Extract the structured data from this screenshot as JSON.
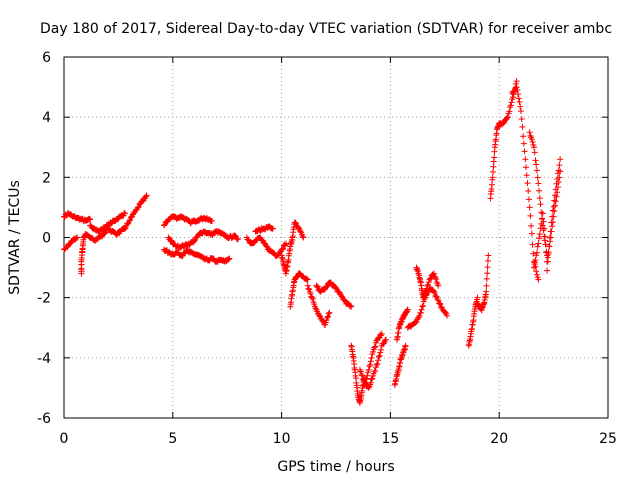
{
  "chart_data": {
    "type": "scatter",
    "title": "Day 180 of 2017, Sidereal Day-to-day VTEC variation (SDTVAR) for receiver ambc",
    "xlabel": "GPS time / hours",
    "ylabel": "SDTVAR / TECUs",
    "xlim": [
      0,
      25
    ],
    "ylim": [
      -6,
      6
    ],
    "x_ticks": [
      0,
      5,
      10,
      15,
      20,
      25
    ],
    "y_ticks": [
      -6,
      -4,
      -2,
      0,
      2,
      4,
      6
    ],
    "x_tick_labels": [
      "0",
      "5",
      "10",
      "15",
      "20",
      "25"
    ],
    "y_tick_labels": [
      "-6",
      "-4",
      "-2",
      "0",
      "2",
      "4",
      "6"
    ],
    "grid": true,
    "marker": "+",
    "color": "#ff0000",
    "series": [
      {
        "name": "s1",
        "x": [
          0.0,
          0.2,
          0.4,
          0.6,
          0.8,
          1.0,
          1.2
        ],
        "y": [
          0.7,
          0.8,
          0.7,
          0.65,
          0.6,
          0.55,
          0.6
        ]
      },
      {
        "name": "s2",
        "x": [
          0.0,
          0.2,
          0.4,
          0.6
        ],
        "y": [
          -0.4,
          -0.25,
          -0.1,
          0.0
        ]
      },
      {
        "name": "s3",
        "x": [
          0.8,
          0.8,
          0.85,
          0.9,
          1.0,
          1.2,
          1.4,
          1.6,
          1.8,
          2.0,
          2.2,
          2.4
        ],
        "y": [
          -1.2,
          -0.8,
          -0.4,
          0.0,
          0.1,
          0.0,
          -0.1,
          0.0,
          0.1,
          0.3,
          0.2,
          0.1
        ]
      },
      {
        "name": "s4",
        "x": [
          1.2,
          1.4,
          1.6,
          1.8,
          2.0,
          2.2,
          2.4,
          2.6,
          2.8
        ],
        "y": [
          0.4,
          0.3,
          0.2,
          0.3,
          0.4,
          0.5,
          0.6,
          0.7,
          0.8
        ]
      },
      {
        "name": "s5",
        "x": [
          2.4,
          2.6,
          2.8,
          3.0,
          3.2,
          3.4,
          3.6,
          3.8
        ],
        "y": [
          0.1,
          0.2,
          0.3,
          0.55,
          0.8,
          1.0,
          1.2,
          1.4
        ]
      },
      {
        "name": "s6",
        "x": [
          4.6,
          4.8,
          5.0,
          5.2,
          5.4,
          5.6,
          5.8,
          6.0,
          6.2,
          6.4,
          6.6,
          6.8
        ],
        "y": [
          0.4,
          0.6,
          0.7,
          0.65,
          0.7,
          0.6,
          0.5,
          0.55,
          0.6,
          0.65,
          0.6,
          0.55
        ]
      },
      {
        "name": "s7",
        "x": [
          4.6,
          4.8,
          5.0,
          5.2,
          5.4,
          5.6,
          5.8,
          6.0,
          6.2,
          6.4,
          6.6,
          6.8,
          7.0,
          7.2,
          7.4,
          7.6
        ],
        "y": [
          -0.4,
          -0.5,
          -0.55,
          -0.5,
          -0.6,
          -0.45,
          -0.5,
          -0.55,
          -0.6,
          -0.7,
          -0.75,
          -0.7,
          -0.8,
          -0.75,
          -0.8,
          -0.7
        ]
      },
      {
        "name": "s8",
        "x": [
          4.8,
          5.0,
          5.2,
          5.4,
          5.6,
          5.8,
          6.0,
          6.2,
          6.4,
          6.6,
          6.8,
          7.0,
          7.2,
          7.4,
          7.6,
          7.8,
          8.0
        ],
        "y": [
          0.0,
          -0.2,
          -0.3,
          -0.3,
          -0.25,
          -0.2,
          -0.1,
          0.1,
          0.2,
          0.15,
          0.1,
          0.2,
          0.15,
          0.05,
          0.0,
          0.05,
          -0.05
        ]
      },
      {
        "name": "s9",
        "x": [
          8.4,
          8.6,
          8.8,
          9.0,
          9.2,
          9.4,
          9.6,
          9.8,
          10.0,
          10.2
        ],
        "y": [
          0.0,
          -0.2,
          -0.1,
          0.0,
          -0.2,
          -0.4,
          -0.5,
          -0.6,
          -0.4,
          -0.2
        ]
      },
      {
        "name": "s10",
        "x": [
          8.8,
          9.0,
          9.2,
          9.4,
          9.6
        ],
        "y": [
          0.2,
          0.25,
          0.3,
          0.35,
          0.3
        ]
      },
      {
        "name": "s11",
        "x": [
          10.0,
          10.1,
          10.2,
          10.3,
          10.4,
          10.5,
          10.6,
          10.8,
          11.0
        ],
        "y": [
          -0.6,
          -0.9,
          -1.2,
          -0.8,
          -0.3,
          0.0,
          0.5,
          0.3,
          0.0
        ]
      },
      {
        "name": "s12",
        "x": [
          10.4,
          10.5,
          10.6,
          10.7,
          10.8,
          11.0,
          11.2
        ],
        "y": [
          -2.3,
          -1.8,
          -1.4,
          -1.3,
          -1.2,
          -1.3,
          -1.4
        ]
      },
      {
        "name": "s13",
        "x": [
          11.2,
          11.4,
          11.6,
          11.8,
          12.0,
          12.2
        ],
        "y": [
          -1.6,
          -2.0,
          -2.4,
          -2.7,
          -2.9,
          -2.5
        ]
      },
      {
        "name": "s14",
        "x": [
          11.6,
          11.8,
          12.0,
          12.2,
          12.4,
          12.6,
          12.8,
          13.0,
          13.2
        ],
        "y": [
          -1.6,
          -1.8,
          -1.7,
          -1.5,
          -1.6,
          -1.8,
          -2.0,
          -2.2,
          -2.3
        ]
      },
      {
        "name": "s15",
        "x": [
          13.2,
          13.3,
          13.4,
          13.5,
          13.6,
          13.7,
          13.8
        ],
        "y": [
          -3.6,
          -4.0,
          -4.6,
          -5.2,
          -5.5,
          -5.1,
          -4.7
        ]
      },
      {
        "name": "s16",
        "x": [
          13.6,
          13.8,
          14.0,
          14.2,
          14.4,
          14.6,
          14.8
        ],
        "y": [
          -4.4,
          -4.8,
          -5.0,
          -4.6,
          -4.2,
          -3.6,
          -3.4
        ]
      },
      {
        "name": "s17",
        "x": [
          13.8,
          14.0,
          14.2,
          14.4,
          14.6
        ],
        "y": [
          -4.9,
          -4.4,
          -3.8,
          -3.4,
          -3.2
        ]
      },
      {
        "name": "s18",
        "x": [
          15.2,
          15.3,
          15.4,
          15.5,
          15.6,
          15.7
        ],
        "y": [
          -4.9,
          -4.6,
          -4.3,
          -4.0,
          -3.8,
          -3.6
        ]
      },
      {
        "name": "s19",
        "x": [
          15.3,
          15.4,
          15.5,
          15.6,
          15.7,
          15.8
        ],
        "y": [
          -3.4,
          -3.0,
          -2.8,
          -2.6,
          -2.5,
          -2.4
        ]
      },
      {
        "name": "s20",
        "x": [
          15.8,
          16.0,
          16.2,
          16.4,
          16.6,
          16.8,
          17.0,
          17.2,
          17.4,
          17.6
        ],
        "y": [
          -3.0,
          -2.9,
          -2.8,
          -2.5,
          -2.0,
          -1.7,
          -1.8,
          -2.1,
          -2.4,
          -2.6
        ]
      },
      {
        "name": "s21",
        "x": [
          16.2,
          16.3,
          16.4,
          16.5,
          16.6,
          16.8,
          17.0,
          17.2
        ],
        "y": [
          -1.0,
          -1.2,
          -1.5,
          -2.0,
          -1.8,
          -1.4,
          -1.2,
          -1.6
        ]
      },
      {
        "name": "s22",
        "x": [
          18.6,
          18.7,
          18.8,
          18.9,
          19.0
        ],
        "y": [
          -3.6,
          -3.2,
          -2.8,
          -2.3,
          -2.0
        ]
      },
      {
        "name": "s23",
        "x": [
          19.0,
          19.1,
          19.2,
          19.3,
          19.4,
          19.5
        ],
        "y": [
          -2.2,
          -2.3,
          -2.4,
          -2.2,
          -1.8,
          -0.6
        ]
      },
      {
        "name": "s24",
        "x": [
          19.6,
          19.7,
          19.8,
          19.9,
          20.0,
          20.2,
          20.4,
          20.6,
          20.8
        ],
        "y": [
          1.3,
          2.0,
          3.0,
          3.6,
          3.8,
          3.8,
          4.0,
          4.6,
          5.2
        ]
      },
      {
        "name": "s25",
        "x": [
          20.6,
          20.8,
          21.0,
          21.2,
          21.4,
          21.6,
          21.8
        ],
        "y": [
          4.8,
          5.0,
          4.2,
          2.6,
          1.0,
          -0.8,
          -1.4
        ]
      },
      {
        "name": "s26",
        "x": [
          21.4,
          21.6,
          21.8,
          22.0,
          22.2
        ],
        "y": [
          3.5,
          3.0,
          1.8,
          0.4,
          -0.6
        ]
      },
      {
        "name": "s27",
        "x": [
          21.6,
          21.8,
          22.0,
          22.2,
          22.4,
          22.6,
          22.8
        ],
        "y": [
          -1.0,
          -0.2,
          0.8,
          -0.8,
          0.2,
          1.2,
          2.2
        ]
      },
      {
        "name": "s28",
        "x": [
          22.2,
          22.4,
          22.6,
          22.8
        ],
        "y": [
          -1.1,
          0.5,
          1.6,
          2.6
        ]
      }
    ]
  }
}
